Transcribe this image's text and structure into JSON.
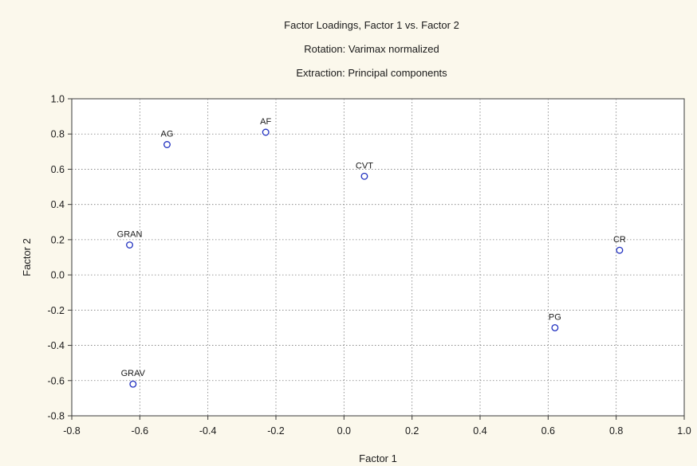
{
  "chart_data": {
    "type": "scatter",
    "title": "Factor Loadings, Factor 1 vs. Factor 2",
    "subtitle_lines": [
      "Rotation: Varimax normalized",
      "Extraction: Principal components"
    ],
    "xlabel": "Factor 1",
    "ylabel": "Factor 2",
    "xlim": [
      -0.8,
      1.0
    ],
    "ylim": [
      -0.8,
      1.0
    ],
    "x_ticks": [
      -0.8,
      -0.6,
      -0.4,
      -0.2,
      0.0,
      0.2,
      0.4,
      0.6,
      0.8,
      1.0
    ],
    "y_ticks": [
      -0.8,
      -0.6,
      -0.4,
      -0.2,
      0.0,
      0.2,
      0.4,
      0.6,
      0.8,
      1.0
    ],
    "x_tick_labels": [
      "-0.8",
      "-0.6",
      "-0.4",
      "-0.2",
      "0.0",
      "0.2",
      "0.4",
      "0.6",
      "0.8",
      "1.0"
    ],
    "y_tick_labels": [
      "-0.8",
      "-0.6",
      "-0.4",
      "-0.2",
      "0.0",
      "0.2",
      "0.4",
      "0.6",
      "0.8",
      "1.0"
    ],
    "grid": true,
    "marker": "open-circle",
    "marker_color": "#1f2fbf",
    "points": [
      {
        "label": "AG",
        "x": -0.52,
        "y": 0.74
      },
      {
        "label": "AF",
        "x": -0.23,
        "y": 0.81
      },
      {
        "label": "CVT",
        "x": 0.06,
        "y": 0.56
      },
      {
        "label": "GRAN",
        "x": -0.63,
        "y": 0.17
      },
      {
        "label": "CR",
        "x": 0.81,
        "y": 0.14
      },
      {
        "label": "PG",
        "x": 0.62,
        "y": -0.3
      },
      {
        "label": "GRAV",
        "x": -0.62,
        "y": -0.62
      }
    ]
  }
}
